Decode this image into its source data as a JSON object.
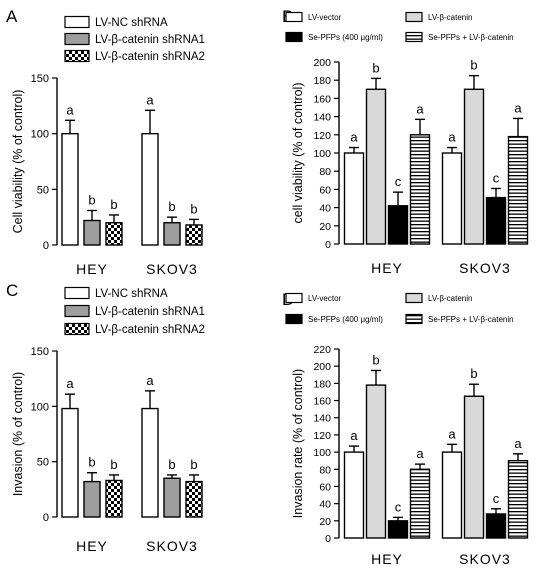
{
  "chart_data": [
    {
      "panel": "A",
      "type": "bar",
      "ylabel": "Cell viability  (% of control)",
      "ylim": [
        0,
        150
      ],
      "yticks": [
        0,
        50,
        100,
        150
      ],
      "categories": [
        "HEY",
        "SKOV3"
      ],
      "legend_position": "top-left",
      "series": [
        {
          "name": "LV-NC shRNA",
          "fill": "white",
          "values": [
            100,
            100
          ],
          "errors": [
            12,
            21
          ],
          "labels": [
            "a",
            "a"
          ]
        },
        {
          "name": "LV-β-catenin shRNA1",
          "fill": "gray",
          "values": [
            22,
            20
          ],
          "errors": [
            9,
            5
          ],
          "labels": [
            "b",
            "b"
          ]
        },
        {
          "name": "LV-β-catenin shRNA2",
          "fill": "checker",
          "values": [
            20,
            18
          ],
          "errors": [
            7,
            5
          ],
          "labels": [
            "b",
            "b"
          ]
        }
      ]
    },
    {
      "panel": "B",
      "type": "bar",
      "ylabel": "cell viability (% of control)",
      "ylim": [
        0,
        200
      ],
      "yticks": [
        0,
        20,
        40,
        60,
        80,
        100,
        120,
        140,
        160,
        180,
        200
      ],
      "categories": [
        "HEY",
        "SKOV3"
      ],
      "legend_position": "top",
      "series": [
        {
          "name": "LV-vector",
          "fill": "white",
          "values": [
            100,
            100
          ],
          "errors": [
            6,
            6
          ],
          "labels": [
            "a",
            "a"
          ]
        },
        {
          "name": "LV-β-catenin",
          "fill": "lightgray",
          "values": [
            170,
            170
          ],
          "errors": [
            12,
            15
          ],
          "labels": [
            "b",
            "b"
          ]
        },
        {
          "name": "Se-PFPs (400 μg/ml)",
          "fill": "black",
          "values": [
            42,
            51
          ],
          "errors": [
            15,
            10
          ],
          "labels": [
            "c",
            "c"
          ]
        },
        {
          "name": "Se-PFPs + LV-β-catenin",
          "fill": "hstripe",
          "values": [
            120,
            118
          ],
          "errors": [
            17,
            20
          ],
          "labels": [
            "a",
            "a"
          ]
        }
      ]
    },
    {
      "panel": "C",
      "type": "bar",
      "ylabel": "Invasion  (% of control)",
      "ylim": [
        0,
        150
      ],
      "yticks": [
        0,
        50,
        100,
        150
      ],
      "categories": [
        "HEY",
        "SKOV3"
      ],
      "legend_position": "top-left",
      "series": [
        {
          "name": "LV-NC shRNA",
          "fill": "white",
          "values": [
            98,
            98
          ],
          "errors": [
            13,
            16
          ],
          "labels": [
            "a",
            "a"
          ]
        },
        {
          "name": "LV-β-catenin shRNA1",
          "fill": "gray",
          "values": [
            32,
            35
          ],
          "errors": [
            8,
            3
          ],
          "labels": [
            "b",
            "b"
          ]
        },
        {
          "name": "LV-β-catenin shRNA2",
          "fill": "checker",
          "values": [
            33,
            32
          ],
          "errors": [
            5,
            6
          ],
          "labels": [
            "b",
            "b"
          ]
        }
      ]
    },
    {
      "panel": "D",
      "type": "bar",
      "ylabel": "Invasion rate (% of control)",
      "ylim": [
        0,
        220
      ],
      "yticks": [
        0,
        20,
        40,
        60,
        80,
        100,
        120,
        140,
        160,
        180,
        200,
        220
      ],
      "categories": [
        "HEY",
        "SKOV3"
      ],
      "legend_position": "top",
      "series": [
        {
          "name": "LV-vector",
          "fill": "white",
          "values": [
            100,
            100
          ],
          "errors": [
            7,
            9
          ],
          "labels": [
            "a",
            "a"
          ]
        },
        {
          "name": "LV-β-catenin",
          "fill": "lightgray",
          "values": [
            178,
            165
          ],
          "errors": [
            17,
            14
          ],
          "labels": [
            "b",
            "b"
          ]
        },
        {
          "name": "Se-PFPs (400 μg/ml)",
          "fill": "black",
          "values": [
            20,
            28
          ],
          "errors": [
            4,
            6
          ],
          "labels": [
            "c",
            "c"
          ]
        },
        {
          "name": "Se-PFPs + LV-β-catenin",
          "fill": "hstripe",
          "values": [
            80,
            90
          ],
          "errors": [
            6,
            8
          ],
          "labels": [
            "a",
            "a"
          ]
        }
      ]
    }
  ]
}
